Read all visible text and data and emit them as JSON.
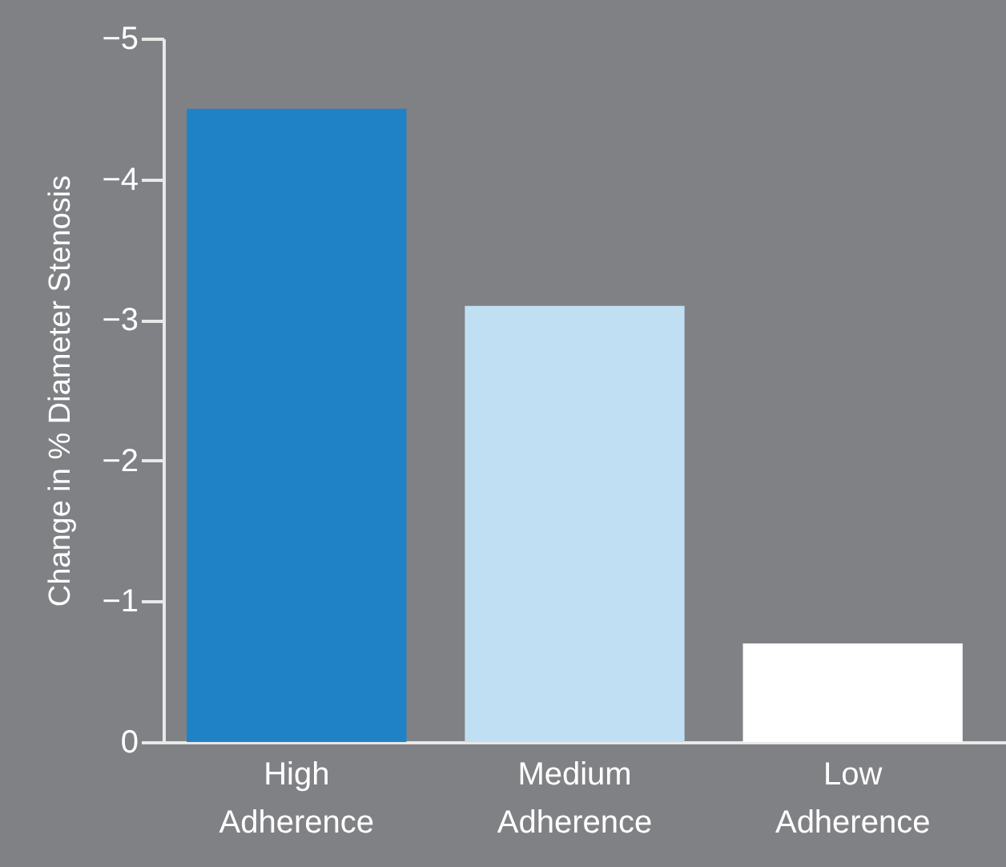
{
  "chart_data": {
    "type": "bar",
    "ylabel": "Change in % Diameter Stenosis",
    "categories": [
      "High Adherence",
      "Medium Adherence",
      "Low Adherence"
    ],
    "values": [
      -4.5,
      -3.1,
      -0.7
    ],
    "colors": [
      "#2082c6",
      "#c1dff3",
      "#ffffff"
    ],
    "ylim": [
      0,
      -5
    ],
    "yticks": [
      0,
      -1,
      -2,
      -3,
      -4,
      -5
    ],
    "grid": false,
    "legend": false
  }
}
